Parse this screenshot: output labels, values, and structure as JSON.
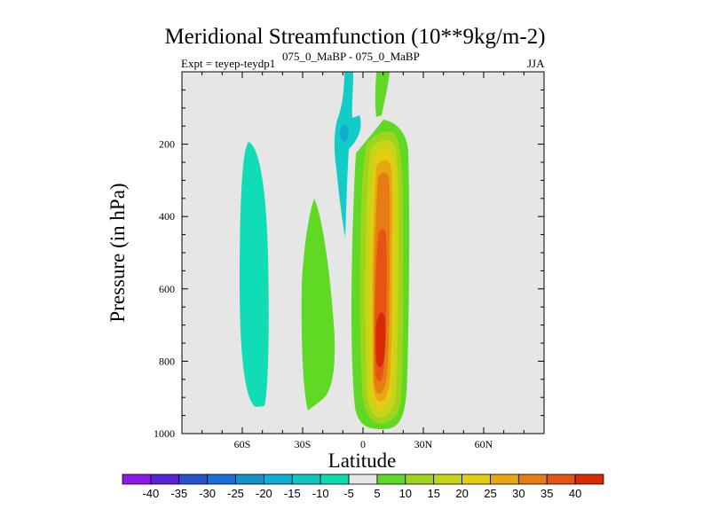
{
  "chart_data": {
    "type": "filled-contour",
    "title": "Meridional Streamfunction (10**9kg/m-2)",
    "subtitle_left": "Expt = teyep-teydp1",
    "subtitle_center": "075_0_MaBP - 075_0_MaBP",
    "subtitle_right": "JJA",
    "xlabel": "Latitude",
    "ylabel": "Pressure (in hPa)",
    "xlim": [
      -90,
      90
    ],
    "ylim": [
      1000,
      0
    ],
    "x_ticks": [
      {
        "value": -60,
        "label": "60S"
      },
      {
        "value": -30,
        "label": "30S"
      },
      {
        "value": 0,
        "label": "0"
      },
      {
        "value": 30,
        "label": "30N"
      },
      {
        "value": 60,
        "label": "60N"
      }
    ],
    "y_ticks": [
      {
        "value": 200,
        "label": "200"
      },
      {
        "value": 400,
        "label": "400"
      },
      {
        "value": 600,
        "label": "600"
      },
      {
        "value": 800,
        "label": "800"
      },
      {
        "value": 1000,
        "label": "1000"
      }
    ],
    "background_color": "#e6e6e6",
    "colorbar": {
      "levels": [
        "-40",
        "-35",
        "-30",
        "-25",
        "-20",
        "-15",
        "-10",
        "-5",
        "5",
        "10",
        "15",
        "20",
        "25",
        "30",
        "35",
        "40"
      ],
      "colors": [
        "#8c1aeb",
        "#5a22d8",
        "#2a52cf",
        "#1a6fd6",
        "#1590c9",
        "#10aed3",
        "#10c6c3",
        "#0edab0",
        "#e6e6e6",
        "#5fd924",
        "#9ed41a",
        "#c7d51a",
        "#e3cc12",
        "#e5a812",
        "#e57d12",
        "#e55412",
        "#d92a06"
      ]
    },
    "features": [
      {
        "name": "southern-cell",
        "value_band": "-10 to -5",
        "lat_range": [
          -64,
          -46
        ],
        "pressure_range": [
          190,
          925
        ],
        "color": "#10dcb5"
      },
      {
        "name": "subtropical-band",
        "value_band": "5 to 10",
        "lat_range": [
          -28,
          -12
        ],
        "pressure_range": [
          345,
          930
        ],
        "color": "#5fd924"
      },
      {
        "name": "upper-negative-column",
        "value_band": "-15 to -5",
        "lat_range": [
          -13,
          -2
        ],
        "pressure_range": [
          0,
          455
        ],
        "color": "#12ccc8"
      },
      {
        "name": "upper-positive-column",
        "value_band": "5 to 10",
        "lat_range": [
          7,
          14
        ],
        "pressure_range": [
          0,
          120
        ],
        "color": "#5fd924"
      },
      {
        "name": "hadley-cell",
        "value_band": "5 to 40",
        "lat_range": [
          -4,
          23
        ],
        "pressure_range": [
          130,
          985
        ],
        "peak_value": 40,
        "peak_location": [
          9,
          740
        ]
      }
    ]
  }
}
